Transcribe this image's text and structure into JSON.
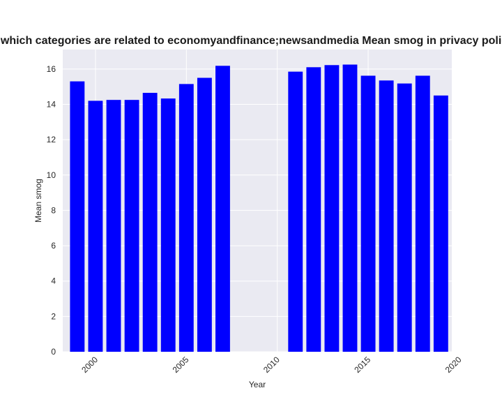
{
  "chart_data": {
    "type": "bar",
    "title": "Websites which categories are related to economyandfinance;newsandmedia Mean smog in privacy policies by Year",
    "xlabel": "Year",
    "ylabel": "Mean smog",
    "x": [
      1999,
      2000,
      2001,
      2002,
      2003,
      2004,
      2005,
      2006,
      2007,
      2011,
      2012,
      2013,
      2014,
      2015,
      2016,
      2017,
      2018,
      2019
    ],
    "values": [
      15.3,
      14.2,
      14.25,
      14.25,
      14.65,
      14.33,
      15.15,
      15.5,
      16.18,
      15.85,
      16.1,
      16.22,
      16.25,
      15.62,
      15.35,
      15.18,
      15.62,
      14.5
    ],
    "xlim": [
      1998.2,
      2019.6
    ],
    "ylim": [
      0,
      17.1
    ],
    "xticks": [
      "2000",
      "2005",
      "2010",
      "2015",
      "2020"
    ],
    "yticks": [
      "0",
      "2",
      "4",
      "6",
      "8",
      "10",
      "12",
      "14",
      "16"
    ],
    "bar_color": "#0000ff",
    "plot_background": "#eaeaf2",
    "grid": true,
    "grid_color": "#ffffff"
  }
}
